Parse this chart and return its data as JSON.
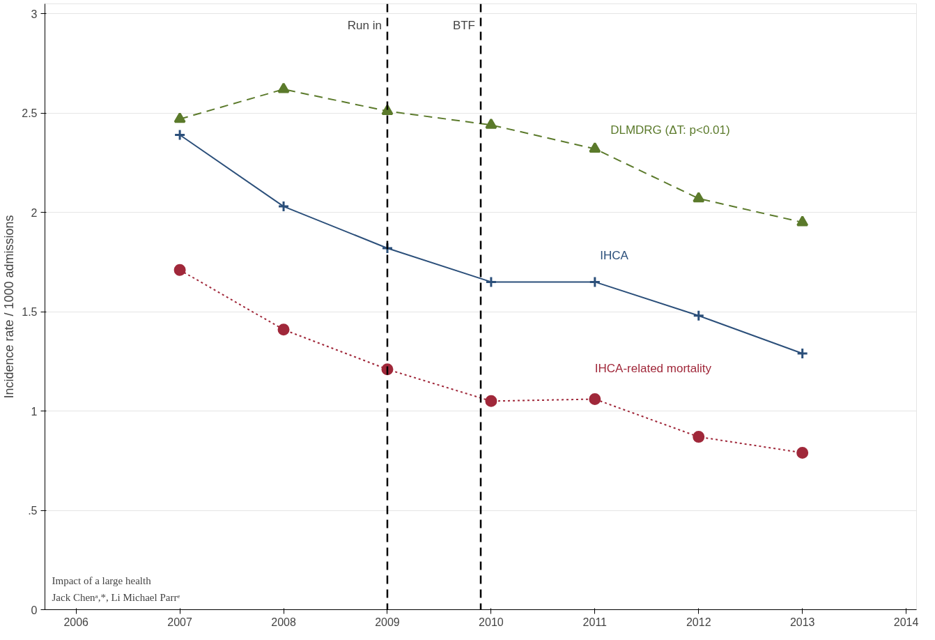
{
  "chart_data": {
    "type": "line",
    "ylabel": "Incidence rate / 1000 admissions",
    "x": [
      2007,
      2008,
      2009,
      2010,
      2011,
      2012,
      2013
    ],
    "series": [
      {
        "name": "DLMDRG (ΔT: p<0.01)",
        "color": "#5b7a2b",
        "marker": "triangle",
        "line_style": "dashed",
        "values": [
          2.47,
          2.62,
          2.51,
          2.44,
          2.32,
          2.07,
          1.95
        ]
      },
      {
        "name": "IHCA",
        "color": "#2b4f7a",
        "marker": "cross",
        "line_style": "solid",
        "values": [
          2.39,
          2.03,
          1.82,
          1.65,
          1.65,
          1.48,
          1.29
        ]
      },
      {
        "name": "IHCA-related mortality",
        "color": "#a0283a",
        "marker": "circle",
        "line_style": "dotted",
        "values": [
          1.71,
          1.41,
          1.21,
          1.05,
          1.06,
          0.87,
          0.79
        ]
      }
    ],
    "xlim": [
      2005.7,
      2014.1
    ],
    "xticks": [
      2006,
      2007,
      2008,
      2009,
      2010,
      2011,
      2012,
      2013,
      2014
    ],
    "ylim": [
      0,
      3.05
    ],
    "yticks": [
      0,
      {
        "value": 0.5,
        "label": ".5"
      },
      1,
      1.5,
      2,
      2.5,
      3
    ],
    "ref_lines": [
      {
        "axis": "x",
        "value": 2009,
        "label": "Run in",
        "line_style": "dashed",
        "color": "#000000"
      },
      {
        "axis": "x",
        "value": 2009.9,
        "label": "BTF",
        "line_style": "dashed",
        "color": "#000000"
      }
    ],
    "annotations": [
      "Impact of a large health",
      "Jack Chenᵃ,*, Li Michael Parrᵉ"
    ],
    "grid": "y"
  }
}
